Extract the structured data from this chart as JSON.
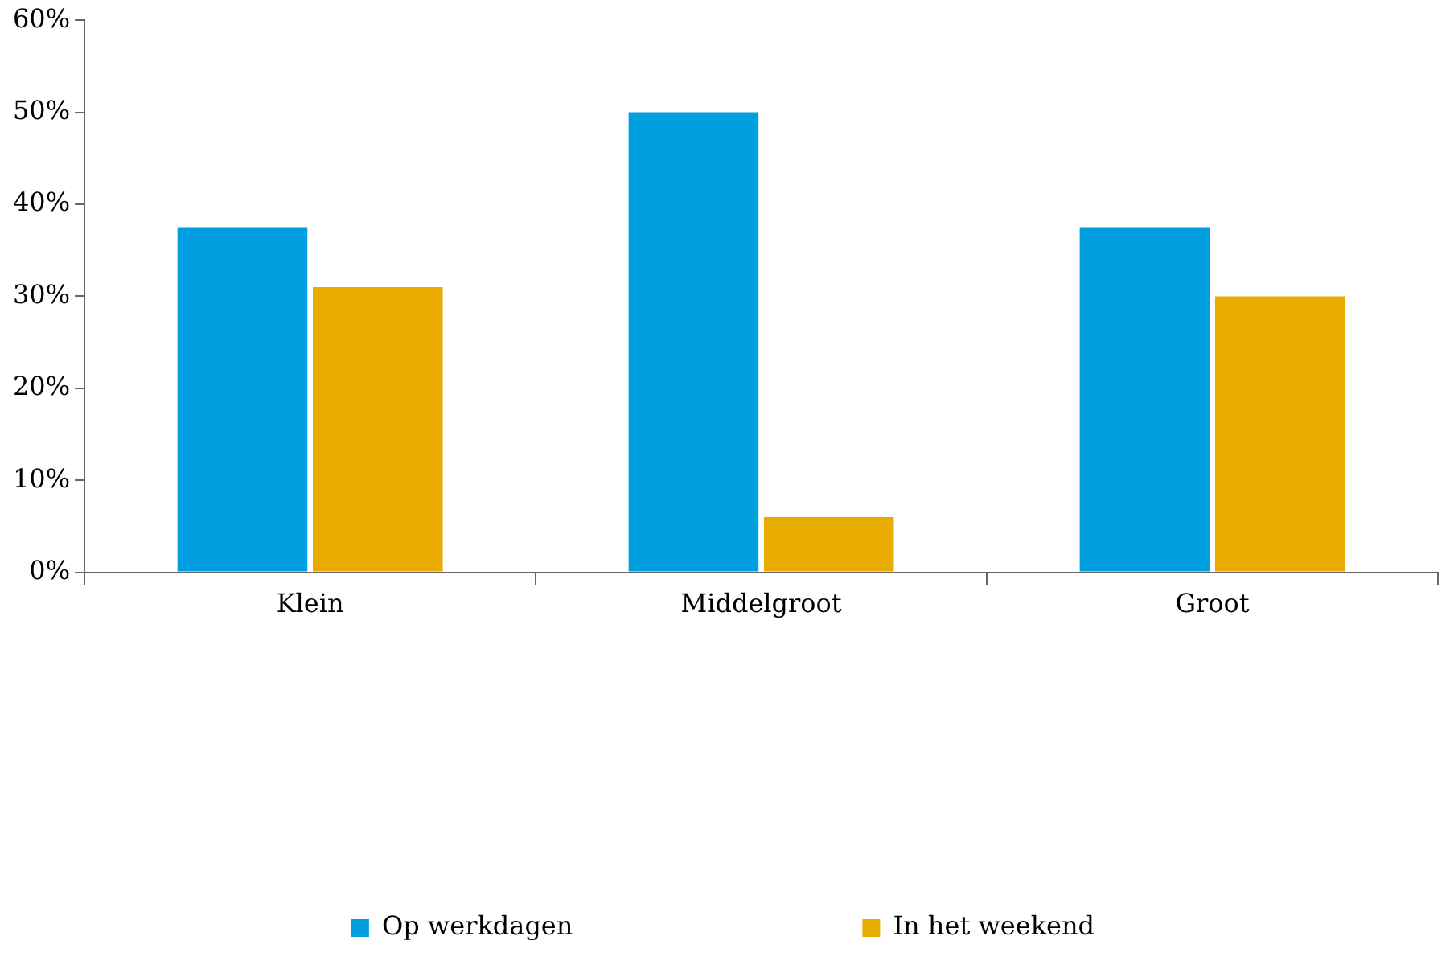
{
  "chart_data": {
    "type": "bar",
    "categories": [
      "Klein",
      "Middelgroot",
      "Groot"
    ],
    "series": [
      {
        "name": "Op werkdagen",
        "color": "#009fe0",
        "values": [
          37.5,
          50,
          37.5
        ]
      },
      {
        "name": "In het weekend",
        "color": "#e8ab00",
        "values": [
          31,
          6,
          30
        ]
      }
    ],
    "ylim": [
      0,
      60
    ],
    "yticks": [
      {
        "value": 0,
        "label": "0%"
      },
      {
        "value": 10,
        "label": "10%"
      },
      {
        "value": 20,
        "label": "20%"
      },
      {
        "value": 30,
        "label": "30%"
      },
      {
        "value": 40,
        "label": "40%"
      },
      {
        "value": 50,
        "label": "50%"
      },
      {
        "value": 60,
        "label": "60%"
      }
    ],
    "grid": false,
    "legend": "bottom"
  }
}
